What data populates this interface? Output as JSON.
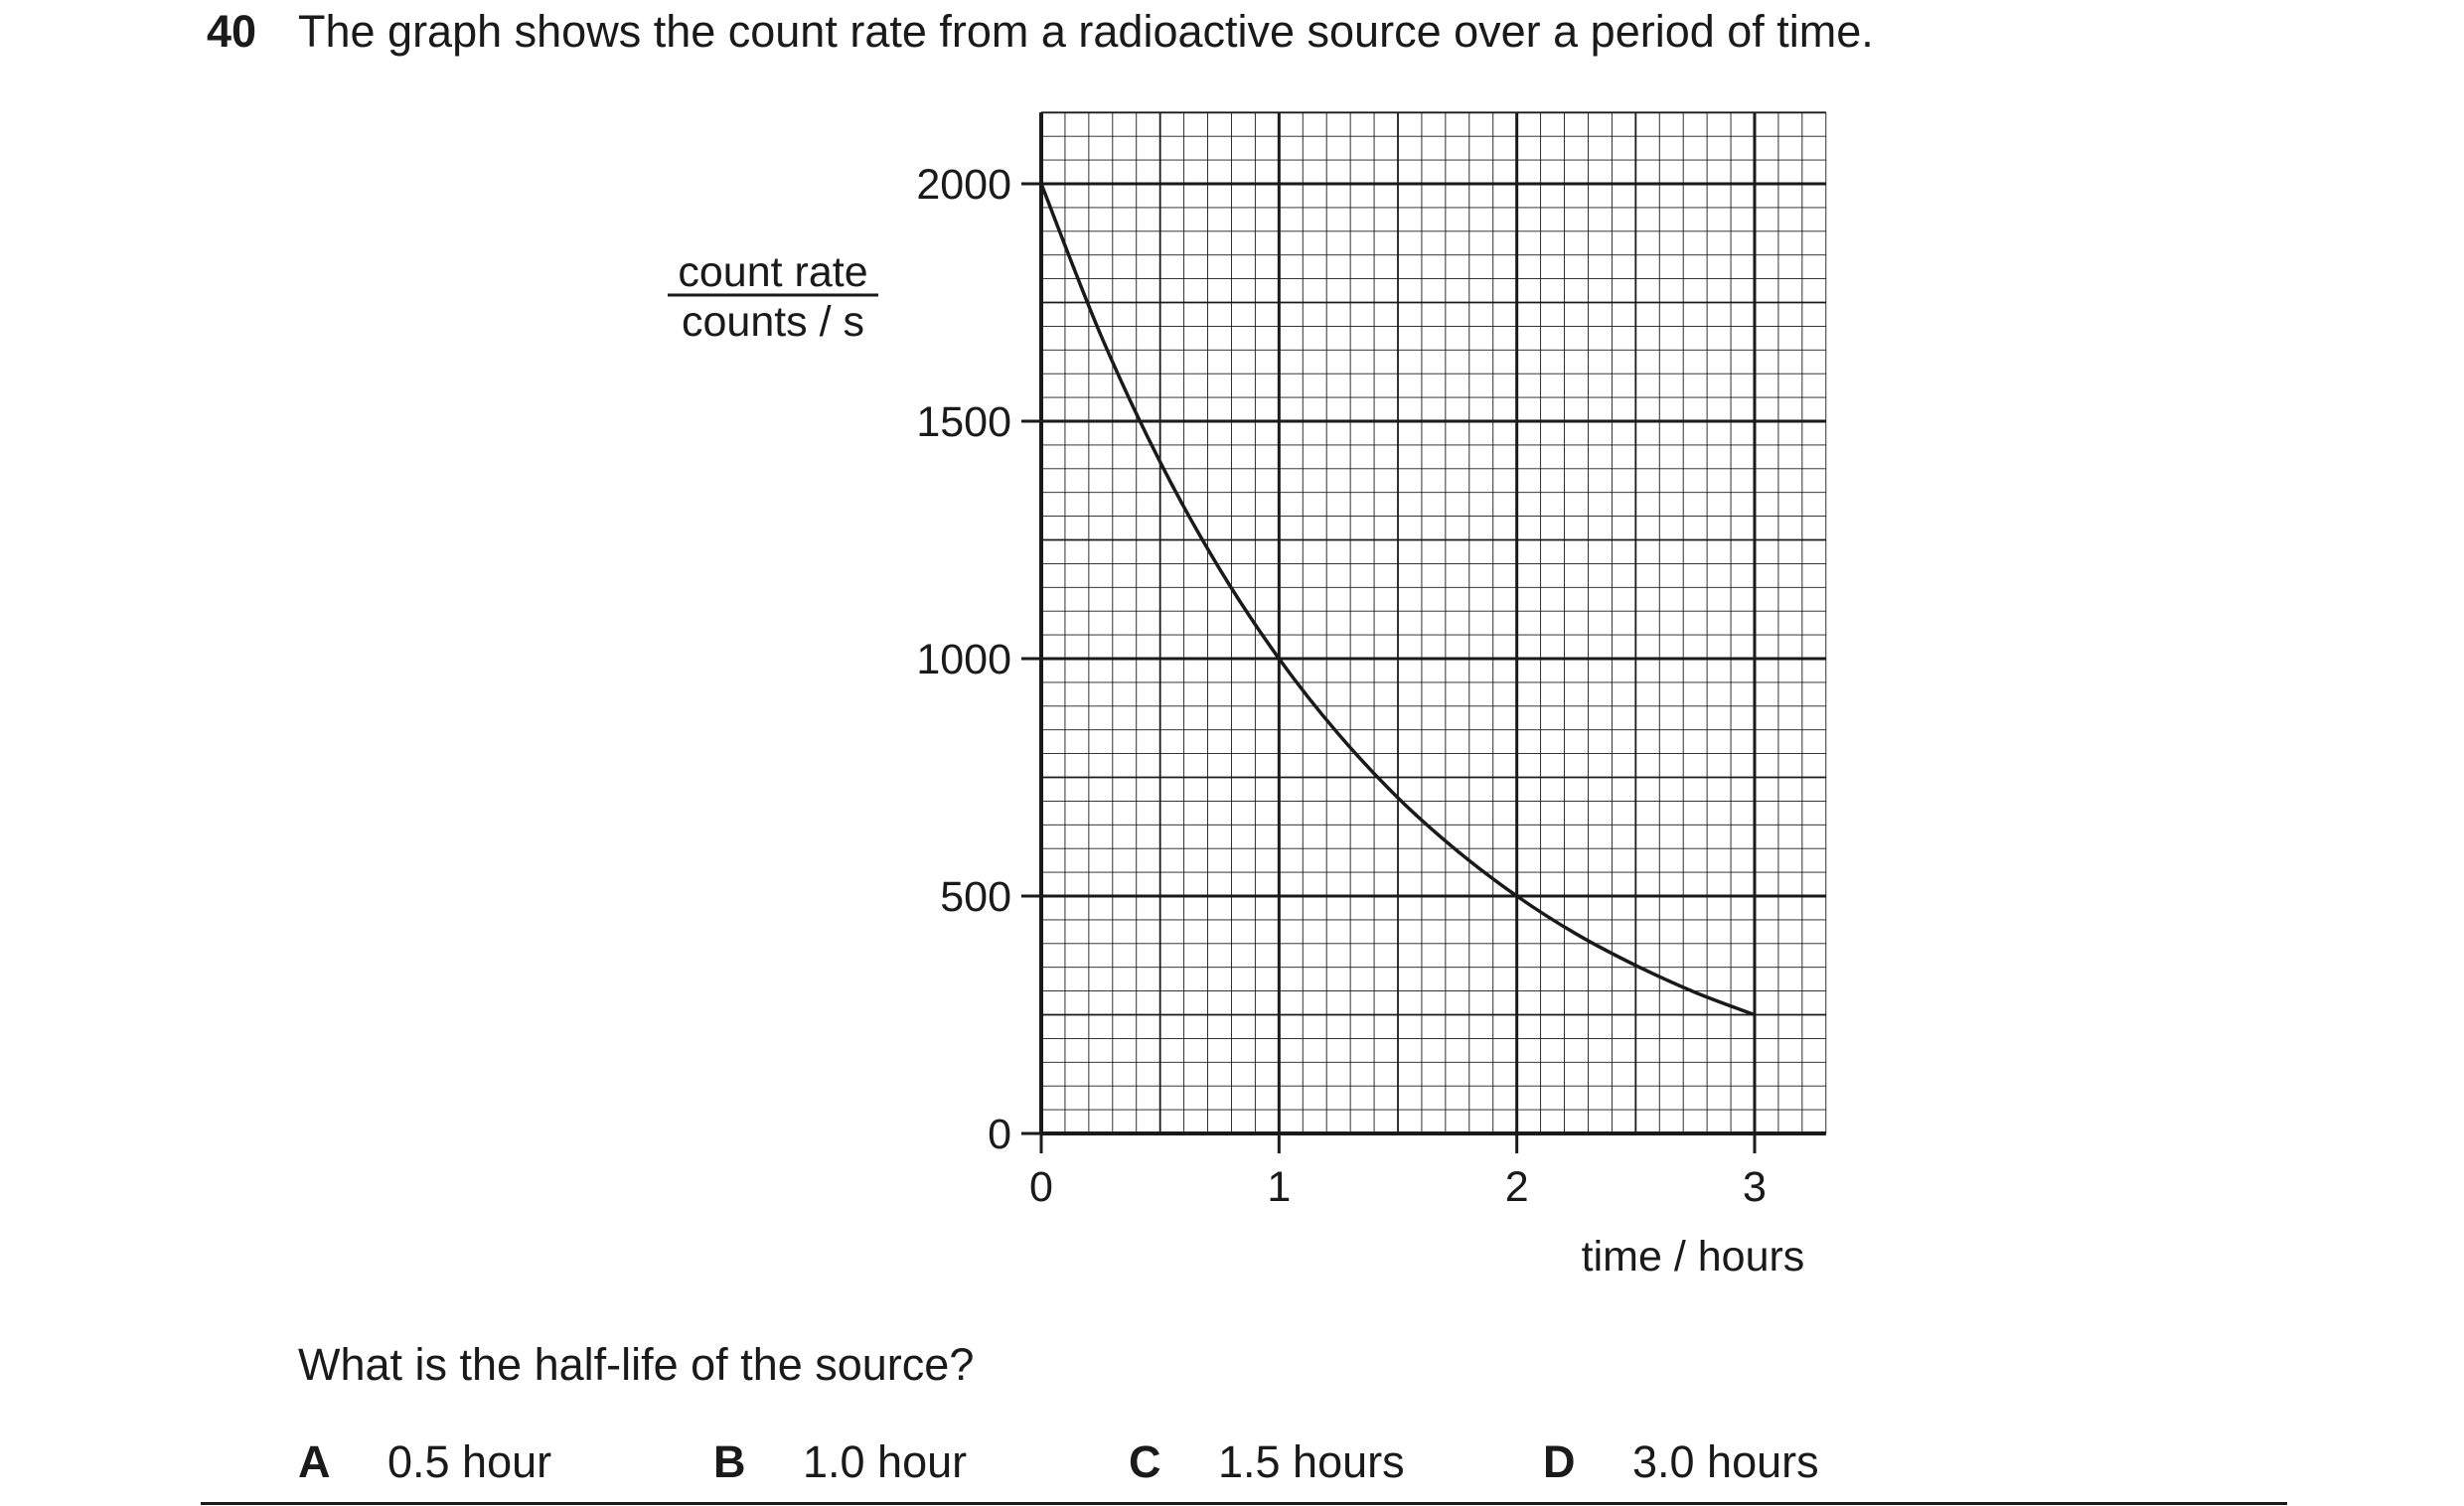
{
  "question": {
    "number": "40",
    "stem": "The graph shows the count rate from a radioactive source over a period of time.",
    "prompt": "What is the half-life of the source?",
    "options": [
      {
        "letter": "A",
        "text": "0.5 hour"
      },
      {
        "letter": "B",
        "text": "1.0 hour"
      },
      {
        "letter": "C",
        "text": "1.5 hours"
      },
      {
        "letter": "D",
        "text": "3.0 hours"
      }
    ]
  },
  "chart_data": {
    "type": "line",
    "title": "",
    "xlabel": "time / hours",
    "ylabel_top": "count rate",
    "ylabel_bottom": "counts / s",
    "xlim": [
      0,
      3.3
    ],
    "ylim": [
      0,
      2150
    ],
    "x_ticks": [
      0,
      1,
      2,
      3
    ],
    "y_ticks": [
      0,
      500,
      1000,
      1500,
      2000
    ],
    "x_tick_labels": [
      "0",
      "1",
      "2",
      "3"
    ],
    "y_tick_labels": [
      "0",
      "500",
      "1000",
      "1500",
      "2000"
    ],
    "grid": true,
    "series": [
      {
        "x": [
          0,
          0.25,
          0.5,
          0.75,
          1,
          1.25,
          1.5,
          1.75,
          2,
          2.25,
          2.5,
          2.75,
          3
        ],
        "values": [
          2000,
          1682,
          1414,
          1189,
          1000,
          841,
          707,
          595,
          500,
          420,
          354,
          297,
          250
        ]
      }
    ]
  }
}
